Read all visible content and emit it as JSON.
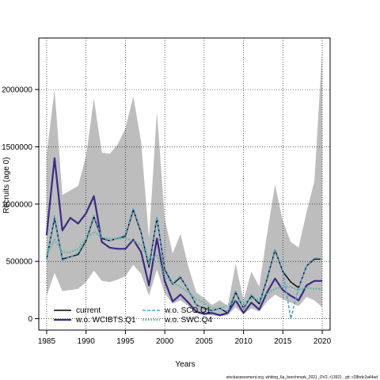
{
  "chart_data": {
    "type": "line",
    "xlabel": "Years",
    "ylabel": "Recruits (age 0)",
    "xlim": [
      1984,
      2021
    ],
    "ylim": [
      -100000,
      2450000
    ],
    "x_ticks": [
      1985,
      1990,
      1995,
      2000,
      2005,
      2010,
      2015,
      2020
    ],
    "y_ticks": [
      0,
      500000,
      1000000,
      1500000,
      2000000
    ],
    "y_tick_labels": [
      "0",
      "500000",
      "1000000",
      "1500000",
      "2000000"
    ],
    "grid": true,
    "legend_position": "bottom-left",
    "x": [
      1985,
      1986,
      1987,
      1988,
      1989,
      1990,
      1991,
      1992,
      1993,
      1994,
      1995,
      1996,
      1997,
      1998,
      1999,
      2000,
      2001,
      2002,
      2003,
      2004,
      2005,
      2006,
      2007,
      2008,
      2009,
      2010,
      2011,
      2012,
      2013,
      2014,
      2015,
      2016,
      2017,
      2018,
      2019,
      2020
    ],
    "band": {
      "upper": [
        1430000,
        2000000,
        1080000,
        1120000,
        1160000,
        1420000,
        1920000,
        1450000,
        1440000,
        1520000,
        1660000,
        1940000,
        1540000,
        700000,
        1810000,
        870000,
        570000,
        740000,
        450000,
        230000,
        180000,
        120000,
        160000,
        110000,
        480000,
        160000,
        410000,
        280000,
        740000,
        1170000,
        850000,
        670000,
        620000,
        930000,
        1200000,
        2350000
      ],
      "lower": [
        200000,
        400000,
        240000,
        250000,
        260000,
        320000,
        420000,
        330000,
        320000,
        340000,
        370000,
        470000,
        390000,
        200000,
        430000,
        220000,
        130000,
        160000,
        110000,
        50000,
        40000,
        30000,
        20000,
        30000,
        100000,
        40000,
        90000,
        60000,
        150000,
        210000,
        170000,
        140000,
        110000,
        190000,
        160000,
        100000
      ]
    },
    "series": [
      {
        "name": "current",
        "color": "#000000",
        "dash": "solid",
        "width": 1.4,
        "values": [
          520000,
          880000,
          520000,
          540000,
          560000,
          680000,
          890000,
          700000,
          680000,
          700000,
          720000,
          950000,
          750000,
          450000,
          880000,
          430000,
          300000,
          360000,
          250000,
          120000,
          90000,
          70000,
          90000,
          50000,
          230000,
          90000,
          200000,
          130000,
          350000,
          600000,
          410000,
          320000,
          270000,
          460000,
          520000,
          520000
        ]
      },
      {
        "name": "w.o. WCIBTS.Q1",
        "color": "#3b2a8a",
        "dash": "solid",
        "width": 2.2,
        "values": [
          730000,
          1400000,
          770000,
          880000,
          830000,
          920000,
          1070000,
          670000,
          620000,
          610000,
          610000,
          690000,
          580000,
          290000,
          700000,
          330000,
          150000,
          210000,
          140000,
          60000,
          40000,
          50000,
          30000,
          50000,
          160000,
          50000,
          140000,
          80000,
          230000,
          350000,
          250000,
          200000,
          160000,
          290000,
          330000,
          330000
        ]
      },
      {
        "name": "w.o. SCO.Q1",
        "color": "#4da3d6",
        "dash": "dashed",
        "width": 1.6,
        "values": [
          510000,
          900000,
          510000,
          540000,
          570000,
          690000,
          900000,
          710000,
          680000,
          700000,
          730000,
          960000,
          760000,
          470000,
          890000,
          440000,
          310000,
          370000,
          250000,
          120000,
          90000,
          70000,
          90000,
          60000,
          240000,
          90000,
          210000,
          140000,
          360000,
          610000,
          420000,
          320,
          270000,
          460000,
          530000,
          520000
        ]
      },
      {
        "name": "w.o. SWC.Q4",
        "color": "#4fb89a",
        "dash": "dotted",
        "width": 2.2,
        "values": [
          560000,
          690000,
          580000,
          580000,
          610000,
          700000,
          760000,
          710000,
          700000,
          700000,
          700000,
          680000,
          640000,
          510000,
          560000,
          370000,
          310000,
          280000,
          230000,
          170000,
          140000,
          90000,
          90000,
          120000,
          160000,
          140000,
          170000,
          170000,
          220000,
          260000,
          280000,
          280000,
          250000,
          270000,
          260000,
          260000
        ]
      }
    ]
  },
  "footer": "stockassessment.org,  whiting_6a_benchmark_2021_OV2, r13921 , git: c28bdc2a44ad"
}
